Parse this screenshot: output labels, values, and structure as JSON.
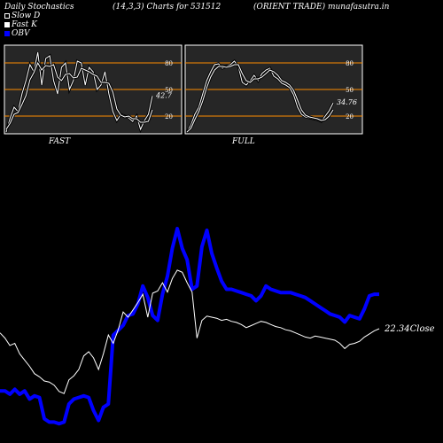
{
  "header": {
    "left": "Daily Stochastics",
    "center": "(14,3,3) Charts for 531512",
    "right": "(ORIENT TRADE) munafasutra.in"
  },
  "legend": [
    {
      "label": "Slow  D",
      "color": "#ffffff",
      "style": "outline"
    },
    {
      "label": "Fast  K",
      "color": "#ffffff",
      "style": "fill"
    },
    {
      "label": "OBV",
      "color": "#0000ff",
      "style": "fill"
    }
  ],
  "colors": {
    "background": "#000000",
    "panel": "#262626",
    "level": "#ff8c00",
    "obv": "#0000ff",
    "price": "#ffffff"
  },
  "chart_data": [
    {
      "type": "line",
      "title": "FAST",
      "ylim": [
        0,
        100
      ],
      "levels": [
        {
          "value": 80,
          "label": "80"
        },
        {
          "value": 50,
          "label": "50"
        },
        {
          "value": 20,
          "label": "20"
        }
      ],
      "last_label": "42.7",
      "series": [
        {
          "name": "Fast K",
          "values": [
            2,
            18,
            30,
            25,
            45,
            60,
            78,
            70,
            92,
            55,
            85,
            88,
            60,
            45,
            75,
            80,
            50,
            60,
            82,
            80,
            55,
            75,
            70,
            50,
            55,
            70,
            45,
            25,
            15,
            22,
            20,
            18,
            14,
            20,
            5,
            15,
            22,
            42.7
          ]
        },
        {
          "name": "Slow D",
          "values": [
            5,
            12,
            22,
            24,
            33,
            43,
            61,
            69,
            80,
            72,
            77,
            76,
            78,
            64,
            60,
            67,
            68,
            63,
            64,
            74,
            72,
            70,
            67,
            65,
            58,
            58,
            57,
            47,
            28,
            21,
            19,
            20,
            17,
            17,
            13,
            13,
            14,
            27
          ]
        }
      ]
    },
    {
      "type": "line",
      "title": "FULL",
      "ylim": [
        0,
        100
      ],
      "levels": [
        {
          "value": 80,
          "label": "80"
        },
        {
          "value": 50,
          "label": "50"
        },
        {
          "value": 20,
          "label": "20"
        }
      ],
      "last_label": "34.76",
      "series": [
        {
          "name": "Fast K",
          "values": [
            2,
            10,
            22,
            30,
            45,
            60,
            70,
            78,
            79,
            74,
            76,
            78,
            82,
            76,
            58,
            55,
            60,
            66,
            60,
            68,
            72,
            74,
            65,
            62,
            57,
            55,
            52,
            44,
            30,
            22,
            19,
            18,
            17,
            16,
            14,
            20,
            26,
            34.76
          ]
        },
        {
          "name": "Slow D",
          "values": [
            2,
            6,
            16,
            25,
            37,
            52,
            64,
            72,
            76,
            76,
            75,
            76,
            78,
            78,
            68,
            60,
            58,
            62,
            62,
            64,
            68,
            72,
            70,
            66,
            60,
            58,
            55,
            49,
            38,
            27,
            21,
            19,
            18,
            17,
            15,
            16,
            20,
            27
          ]
        }
      ]
    },
    {
      "type": "line",
      "series": [
        {
          "name": "OBV",
          "values": [
            2.8,
            2.8,
            2.6,
            2.9,
            2.6,
            2.8,
            2.3,
            2.5,
            2.4,
            1.1,
            0.9,
            0.9,
            0.8,
            0.9,
            2.0,
            2.3,
            2.4,
            2.5,
            2.4,
            1.6,
            1.0,
            1.8,
            2.0,
            6.2,
            6.5,
            6.8,
            7.4,
            7.5,
            8.1,
            9.2,
            8.5,
            7.4,
            7.1,
            8.7,
            9.8,
            11.5,
            12.7,
            11.5,
            10.8,
            9.0,
            9.2,
            11.6,
            12.6,
            11.2,
            10.3,
            9.5,
            9.0,
            9.0,
            8.9,
            8.8,
            8.7,
            8.6,
            8.3,
            8.6,
            9.2,
            9.0,
            8.9,
            8.8,
            8.8,
            8.8,
            8.7,
            8.6,
            8.5,
            8.3,
            8.1,
            7.9,
            7.7,
            7.5,
            7.4,
            7.3,
            7.0,
            7.4,
            7.3,
            7.2,
            7.8,
            8.6,
            8.7,
            8.7
          ]
        },
        {
          "name": "Close",
          "values": [
            29.0,
            28.5,
            27.8,
            28.0,
            27.0,
            26.4,
            25.8,
            25.1,
            24.8,
            24.4,
            24.3,
            24.0,
            23.4,
            23.2,
            24.5,
            24.9,
            25.5,
            26.8,
            27.2,
            26.6,
            25.5,
            27.0,
            28.8,
            28.0,
            29.3,
            31.0,
            30.5,
            31.2,
            31.9,
            32.7,
            30.5,
            32.8,
            33.0,
            33.8,
            32.9,
            34.2,
            35.0,
            34.8,
            33.8,
            32.9,
            28.5,
            30.2,
            30.6,
            30.5,
            30.4,
            30.2,
            30.3,
            30.1,
            30.0,
            29.8,
            29.5,
            29.7,
            29.9,
            30.1,
            30.0,
            29.8,
            29.6,
            29.5,
            29.3,
            29.2,
            29.0,
            28.8,
            28.6,
            28.5,
            28.7,
            28.6,
            28.5,
            28.4,
            28.3,
            28.0,
            27.5,
            27.9,
            28.0,
            28.2,
            28.6,
            28.9,
            29.2,
            29.4
          ]
        }
      ],
      "last_label": "22.34",
      "close_label": "Close"
    }
  ]
}
